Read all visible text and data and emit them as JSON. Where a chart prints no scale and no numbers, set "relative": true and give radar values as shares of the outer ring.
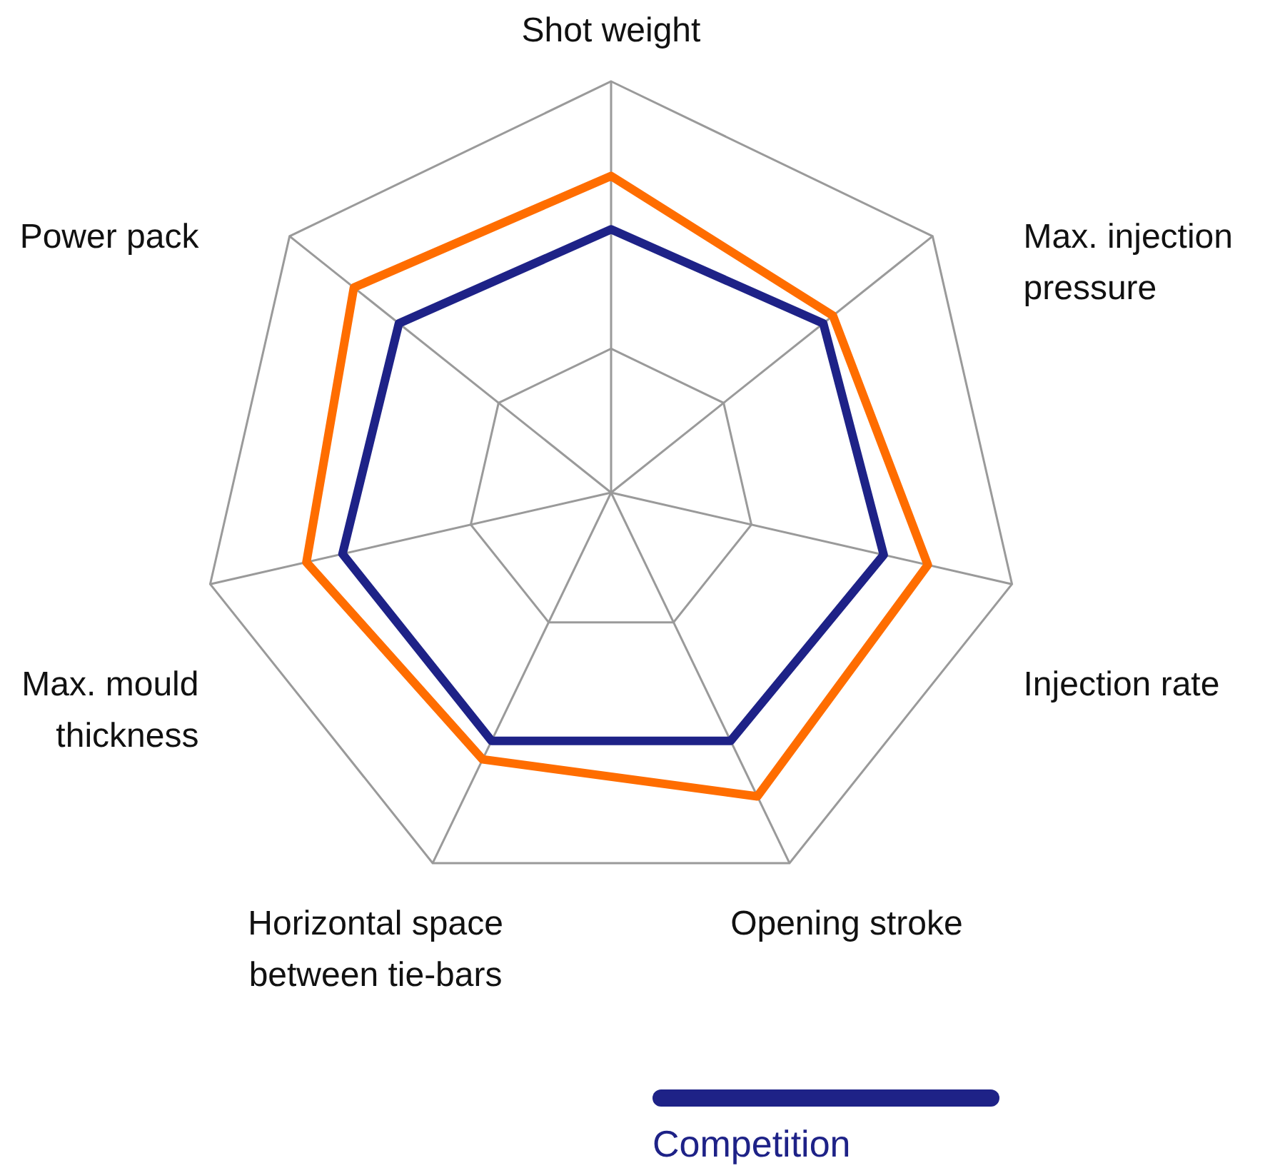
{
  "chart_data": {
    "type": "radar",
    "categories": [
      "Shot weight",
      "Max. injection pressure",
      "Injection rate",
      "Opening stroke",
      "Horizontal space between tie-bars",
      "Max. mould thickness",
      "Power pack"
    ],
    "relative": true,
    "grid": true,
    "legend": "bottom",
    "series": [
      {
        "color": "#ff6d00",
        "values": [
          0.77,
          0.69,
          0.79,
          0.82,
          0.72,
          0.76,
          0.8
        ]
      },
      {
        "name": "Competition",
        "color": "#1e2287",
        "values": [
          0.64,
          0.66,
          0.68,
          0.67,
          0.67,
          0.67,
          0.66
        ]
      }
    ]
  }
}
